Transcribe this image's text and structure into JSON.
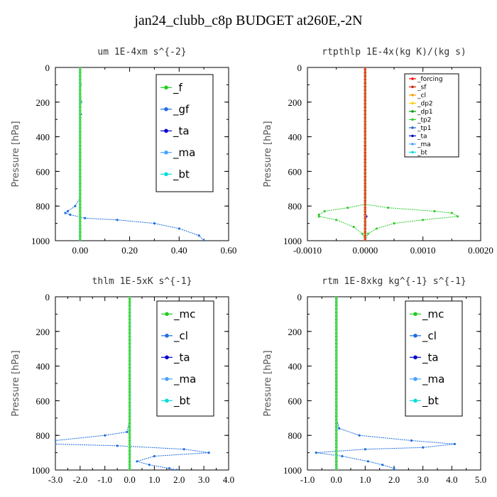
{
  "title": "jan24_clubb_c8p  BUDGET at260E,-2N",
  "chart_data": [
    {
      "type": "line",
      "title": "um  1E-4xm s^{-2}",
      "ylabel": "Pressure [hPa]",
      "xlim": [
        -0.1,
        0.6
      ],
      "ylim": [
        1000,
        0
      ],
      "xticks": [
        0.0,
        0.2,
        0.4,
        0.6
      ],
      "xtick_labels": [
        "0.00",
        "0.20",
        "0.40",
        "0.60"
      ],
      "yticks": [
        0,
        200,
        400,
        600,
        800,
        1000
      ],
      "ytick_labels": [
        "0",
        "200",
        "400",
        "600",
        "800",
        "1000"
      ],
      "legend_position": "top-right",
      "series": [
        {
          "name": "_f",
          "color": "#22cc22",
          "x": [
            0,
            0,
            0,
            0,
            0,
            0,
            0,
            0,
            0,
            0,
            0,
            0,
            0
          ],
          "y": [
            0,
            100,
            200,
            300,
            400,
            500,
            600,
            700,
            800,
            850,
            900,
            950,
            1000
          ]
        },
        {
          "name": "_gf",
          "color": "#1e6ee0",
          "x": [
            0,
            0.002,
            0.004,
            0,
            0.003,
            0,
            0,
            0,
            -0.02,
            -0.05,
            -0.06,
            -0.04,
            0.02,
            0.15,
            0.3,
            0.4,
            0.48,
            0.5
          ],
          "y": [
            0,
            100,
            200,
            220,
            270,
            400,
            600,
            750,
            800,
            830,
            840,
            850,
            870,
            880,
            900,
            930,
            970,
            1000
          ]
        },
        {
          "name": "_ta",
          "color": "#0000cc",
          "x": [
            0,
            0,
            0
          ],
          "y": [
            0,
            500,
            1000
          ]
        },
        {
          "name": "_ma",
          "color": "#4aa0ff",
          "x": [
            0,
            0,
            0
          ],
          "y": [
            0,
            500,
            1000
          ]
        },
        {
          "name": "_bt",
          "color": "#00dddd",
          "x": [
            0,
            0,
            0
          ],
          "y": [
            0,
            500,
            1000
          ]
        }
      ]
    },
    {
      "type": "line",
      "title": "rtpthlp  1E-4x(kg K)/(kg s)",
      "ylabel": "Pressure [hPa]",
      "xlim": [
        -0.001,
        0.002
      ],
      "ylim": [
        1000,
        0
      ],
      "xticks": [
        -0.001,
        0,
        0.001,
        0.002
      ],
      "xtick_labels": [
        "-0.0010",
        "0.0000",
        "0.0010",
        "0.0020"
      ],
      "yticks": [
        0,
        200,
        400,
        600,
        800,
        1000
      ],
      "ytick_labels": [
        "0",
        "200",
        "400",
        "600",
        "800",
        "1000"
      ],
      "legend_position": "top-right",
      "series": [
        {
          "name": "_forcing",
          "color": "#ff0000",
          "x": [
            0,
            0,
            0
          ],
          "y": [
            0,
            500,
            1000
          ]
        },
        {
          "name": "_sf",
          "color": "#cc2200",
          "x": [
            0,
            0,
            0
          ],
          "y": [
            0,
            500,
            1000
          ]
        },
        {
          "name": "_cl",
          "color": "#ff9900",
          "x": [
            0,
            0,
            0
          ],
          "y": [
            0,
            500,
            1000
          ]
        },
        {
          "name": "_dp2",
          "color": "#ffcc00",
          "x": [
            0,
            0,
            0
          ],
          "y": [
            0,
            500,
            1000
          ]
        },
        {
          "name": "_dp1",
          "color": "#009900",
          "x": [
            0,
            0,
            0
          ],
          "y": [
            0,
            500,
            1000
          ]
        },
        {
          "name": "_tp2",
          "color": "#33cc33",
          "x": [
            0,
            0,
            0,
            -0.0003,
            -0.0007,
            -0.0008,
            -0.0008,
            -0.0005,
            -0.0002,
            -5e-05,
            0
          ],
          "y": [
            0,
            700,
            790,
            810,
            830,
            850,
            860,
            880,
            920,
            960,
            1000
          ]
        },
        {
          "name": "_tp1",
          "color": "#2266cc",
          "x": [
            0,
            0,
            0
          ],
          "y": [
            0,
            500,
            1000
          ]
        },
        {
          "name": "_ta",
          "color": "#0000cc",
          "x": [
            0,
            0,
            2e-05,
            0,
            0
          ],
          "y": [
            0,
            840,
            860,
            880,
            1000
          ]
        },
        {
          "name": "_ma",
          "color": "#4aa0ff",
          "x": [
            0,
            0,
            0
          ],
          "y": [
            0,
            500,
            1000
          ]
        },
        {
          "name": "_bt",
          "color": "#00dddd",
          "x": [
            0,
            0,
            0
          ],
          "y": [
            0,
            500,
            1000
          ]
        }
      ],
      "extra_curves": [
        {
          "color": "#33cc33",
          "x": [
            0,
            0.0004,
            0.0012,
            0.0015,
            0.0016,
            0.001,
            0.0005,
            0.0002,
            5e-05,
            0
          ],
          "y": [
            790,
            810,
            830,
            840,
            860,
            880,
            900,
            930,
            960,
            1000
          ]
        }
      ]
    },
    {
      "type": "line",
      "title": "thlm  1E-5xK s^{-1}",
      "ylabel": "Pressure [hPa]",
      "xlim": [
        -3,
        4
      ],
      "ylim": [
        1000,
        0
      ],
      "xticks": [
        -3,
        -2,
        -1,
        0,
        1,
        2,
        3,
        4
      ],
      "xtick_labels": [
        "-3.0",
        "-2.0",
        "-1.0",
        "0.0",
        "1.0",
        "2.0",
        "3.0",
        "4.0"
      ],
      "yticks": [
        0,
        200,
        400,
        600,
        800,
        1000
      ],
      "ytick_labels": [
        "0",
        "200",
        "400",
        "600",
        "800",
        "1000"
      ],
      "legend_position": "top-right",
      "series": [
        {
          "name": "_mc",
          "color": "#22cc22",
          "x": [
            0,
            0,
            0,
            0,
            0,
            0,
            0,
            0,
            0,
            0,
            0,
            0,
            0
          ],
          "y": [
            0,
            100,
            200,
            300,
            400,
            500,
            600,
            700,
            800,
            850,
            900,
            950,
            1000
          ]
        },
        {
          "name": "_cl",
          "color": "#1e6ee0",
          "x": [
            0,
            0,
            0,
            -0.1,
            -1,
            -3,
            -3.1,
            -0.5,
            2.2,
            3.2,
            1,
            0.3,
            0.8,
            1.6,
            1.9
          ],
          "y": [
            0,
            500,
            700,
            780,
            800,
            830,
            850,
            860,
            880,
            900,
            920,
            950,
            970,
            990,
            1000
          ]
        },
        {
          "name": "_ta",
          "color": "#0000cc",
          "x": [
            0,
            0,
            0
          ],
          "y": [
            0,
            500,
            1000
          ]
        },
        {
          "name": "_ma",
          "color": "#4aa0ff",
          "x": [
            0,
            0,
            0
          ],
          "y": [
            0,
            500,
            1000
          ]
        },
        {
          "name": "_bt",
          "color": "#00dddd",
          "x": [
            0,
            0,
            0
          ],
          "y": [
            0,
            500,
            1000
          ]
        }
      ]
    },
    {
      "type": "line",
      "title": "rtm  1E-8xkg kg^{-1} s^{-1}",
      "ylabel": "Pressure [hPa]",
      "xlim": [
        -1,
        5
      ],
      "ylim": [
        1000,
        0
      ],
      "xticks": [
        -1,
        0,
        1,
        2,
        3,
        4,
        5
      ],
      "xtick_labels": [
        "-1.0",
        "0.0",
        "1.0",
        "2.0",
        "3.0",
        "4.0",
        "5.0"
      ],
      "yticks": [
        0,
        200,
        400,
        600,
        800,
        1000
      ],
      "ytick_labels": [
        "0",
        "200",
        "400",
        "600",
        "800",
        "1000"
      ],
      "legend_position": "top-right",
      "series": [
        {
          "name": "_mc",
          "color": "#22cc22",
          "x": [
            0,
            0,
            0,
            0,
            0,
            0,
            0,
            0,
            0,
            0,
            0,
            0,
            0
          ],
          "y": [
            0,
            100,
            200,
            300,
            400,
            500,
            600,
            700,
            800,
            850,
            900,
            950,
            1000
          ]
        },
        {
          "name": "_cl",
          "color": "#1e6ee0",
          "x": [
            0,
            0,
            0,
            0.1,
            0.8,
            2.6,
            4.1,
            3,
            1,
            -0.7,
            0.2,
            1.1,
            1.6,
            2,
            2
          ],
          "y": [
            0,
            500,
            700,
            760,
            800,
            830,
            850,
            870,
            880,
            900,
            920,
            950,
            970,
            990,
            1000
          ]
        },
        {
          "name": "_ta",
          "color": "#0000cc",
          "x": [
            0,
            0,
            0
          ],
          "y": [
            0,
            500,
            1000
          ]
        },
        {
          "name": "_ma",
          "color": "#4aa0ff",
          "x": [
            0,
            0,
            0
          ],
          "y": [
            0,
            500,
            1000
          ]
        },
        {
          "name": "_bt",
          "color": "#00dddd",
          "x": [
            0,
            0,
            0
          ],
          "y": [
            0,
            500,
            1000
          ]
        }
      ]
    }
  ]
}
